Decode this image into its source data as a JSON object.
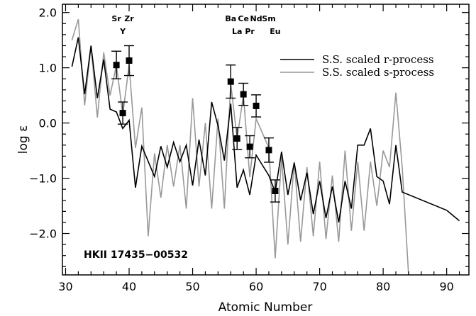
{
  "chart_data": {
    "type": "line",
    "xlabel": "Atomic Number",
    "ylabel": "log ε",
    "xlim": [
      29.5,
      93.5
    ],
    "ylim": [
      -2.75,
      2.15
    ],
    "xticks": [
      30,
      40,
      50,
      60,
      70,
      80,
      90
    ],
    "yticks": [
      -2.0,
      -1.0,
      0.0,
      1.0,
      2.0
    ],
    "xtick_labels": [
      "30",
      "40",
      "50",
      "60",
      "70",
      "80",
      "90"
    ],
    "ytick_labels": [
      "−2.0",
      "−1.0",
      "0.0",
      "1.0",
      "2.0"
    ],
    "legend_position": "top-right",
    "annotation": "HKII 17435−00532",
    "series": [
      {
        "name": "S.S. scaled r-process",
        "color": "#000000",
        "points": [
          [
            31,
            1.02
          ],
          [
            32,
            1.55
          ],
          [
            33,
            0.52
          ],
          [
            34,
            1.4
          ],
          [
            35,
            0.45
          ],
          [
            36,
            1.15
          ],
          [
            37,
            0.25
          ],
          [
            38,
            0.2
          ],
          [
            39,
            -0.1
          ],
          [
            40,
            0.05
          ],
          [
            41,
            -1.17
          ],
          [
            42,
            -0.42
          ],
          [
            44,
            -0.97
          ],
          [
            45,
            -0.42
          ],
          [
            46,
            -0.8
          ],
          [
            47,
            -0.35
          ],
          [
            48,
            -0.7
          ],
          [
            49,
            -0.4
          ],
          [
            50,
            -1.13
          ],
          [
            51,
            -0.3
          ],
          [
            52,
            -0.95
          ],
          [
            53,
            0.38
          ],
          [
            54,
            -0.05
          ],
          [
            55,
            -0.68
          ],
          [
            56,
            0.35
          ],
          [
            57,
            -1.17
          ],
          [
            58,
            -0.85
          ],
          [
            59,
            -1.3
          ],
          [
            60,
            -0.58
          ],
          [
            62,
            -0.95
          ],
          [
            63,
            -1.25
          ],
          [
            64,
            -0.52
          ],
          [
            65,
            -1.3
          ],
          [
            66,
            -0.72
          ],
          [
            67,
            -1.4
          ],
          [
            68,
            -0.9
          ],
          [
            69,
            -1.65
          ],
          [
            70,
            -1.05
          ],
          [
            71,
            -1.72
          ],
          [
            72,
            -1.15
          ],
          [
            73,
            -1.8
          ],
          [
            74,
            -1.05
          ],
          [
            75,
            -1.55
          ],
          [
            76,
            -0.4
          ],
          [
            77,
            -0.4
          ],
          [
            78,
            -0.1
          ],
          [
            79,
            -0.97
          ],
          [
            80,
            -1.05
          ],
          [
            81,
            -1.47
          ],
          [
            82,
            -0.4
          ],
          [
            83,
            -1.25
          ],
          [
            90,
            -1.58
          ],
          [
            92,
            -1.77
          ]
        ]
      },
      {
        "name": "S.S. scaled s-process",
        "color": "#999999",
        "points": [
          [
            31,
            1.5
          ],
          [
            32,
            1.88
          ],
          [
            33,
            0.32
          ],
          [
            34,
            1.4
          ],
          [
            35,
            0.1
          ],
          [
            36,
            1.28
          ],
          [
            37,
            0.5
          ],
          [
            38,
            1.05
          ],
          [
            39,
            0.15
          ],
          [
            40,
            1.05
          ],
          [
            41,
            -0.45
          ],
          [
            42,
            0.28
          ],
          [
            43,
            -2.05
          ],
          [
            44,
            -0.55
          ],
          [
            45,
            -1.35
          ],
          [
            46,
            -0.4
          ],
          [
            47,
            -1.15
          ],
          [
            48,
            -0.4
          ],
          [
            49,
            -1.55
          ],
          [
            50,
            0.45
          ],
          [
            51,
            -1.15
          ],
          [
            52,
            0.0
          ],
          [
            53,
            -1.55
          ],
          [
            54,
            0.08
          ],
          [
            55,
            -1.55
          ],
          [
            56,
            0.72
          ],
          [
            57,
            -0.28
          ],
          [
            58,
            0.5
          ],
          [
            59,
            -0.98
          ],
          [
            60,
            0.08
          ],
          [
            62,
            -0.45
          ],
          [
            63,
            -2.45
          ],
          [
            64,
            -0.62
          ],
          [
            65,
            -2.2
          ],
          [
            66,
            -0.7
          ],
          [
            67,
            -2.15
          ],
          [
            68,
            -0.8
          ],
          [
            69,
            -2.05
          ],
          [
            70,
            -0.7
          ],
          [
            71,
            -2.1
          ],
          [
            72,
            -0.95
          ],
          [
            73,
            -2.15
          ],
          [
            74,
            -0.5
          ],
          [
            75,
            -1.95
          ],
          [
            76,
            -0.7
          ],
          [
            77,
            -1.95
          ],
          [
            78,
            -0.7
          ],
          [
            79,
            -1.5
          ],
          [
            80,
            -0.5
          ],
          [
            81,
            -0.8
          ],
          [
            82,
            0.55
          ],
          [
            83,
            -0.8
          ],
          [
            84,
            -2.75
          ]
        ]
      }
    ],
    "observations": [
      {
        "z": 38,
        "value": 1.05,
        "err": 0.25
      },
      {
        "z": 39,
        "value": 0.18,
        "err": 0.2
      },
      {
        "z": 40,
        "value": 1.13,
        "err": 0.27
      },
      {
        "z": 56,
        "value": 0.75,
        "err": 0.3
      },
      {
        "z": 57,
        "value": -0.28,
        "err": 0.2
      },
      {
        "z": 58,
        "value": 0.52,
        "err": 0.2
      },
      {
        "z": 59,
        "value": -0.43,
        "err": 0.2
      },
      {
        "z": 60,
        "value": 0.31,
        "err": 0.2
      },
      {
        "z": 62,
        "value": -0.49,
        "err": 0.22
      },
      {
        "z": 63,
        "value": -1.23,
        "err": 0.2
      }
    ],
    "element_labels": [
      {
        "text": "Sr",
        "z": 38,
        "row": "top"
      },
      {
        "text": "Zr",
        "z": 40,
        "row": "top"
      },
      {
        "text": "Y",
        "z": 39,
        "row": "bottom"
      },
      {
        "text": "Ba",
        "z": 56,
        "row": "top"
      },
      {
        "text": "Ce",
        "z": 58,
        "row": "top"
      },
      {
        "text": "Nd",
        "z": 60,
        "row": "top"
      },
      {
        "text": "Sm",
        "z": 62,
        "row": "top"
      },
      {
        "text": "La",
        "z": 57,
        "row": "bottom"
      },
      {
        "text": "Pr",
        "z": 59,
        "row": "bottom"
      },
      {
        "text": "Eu",
        "z": 63,
        "row": "bottom"
      }
    ]
  }
}
